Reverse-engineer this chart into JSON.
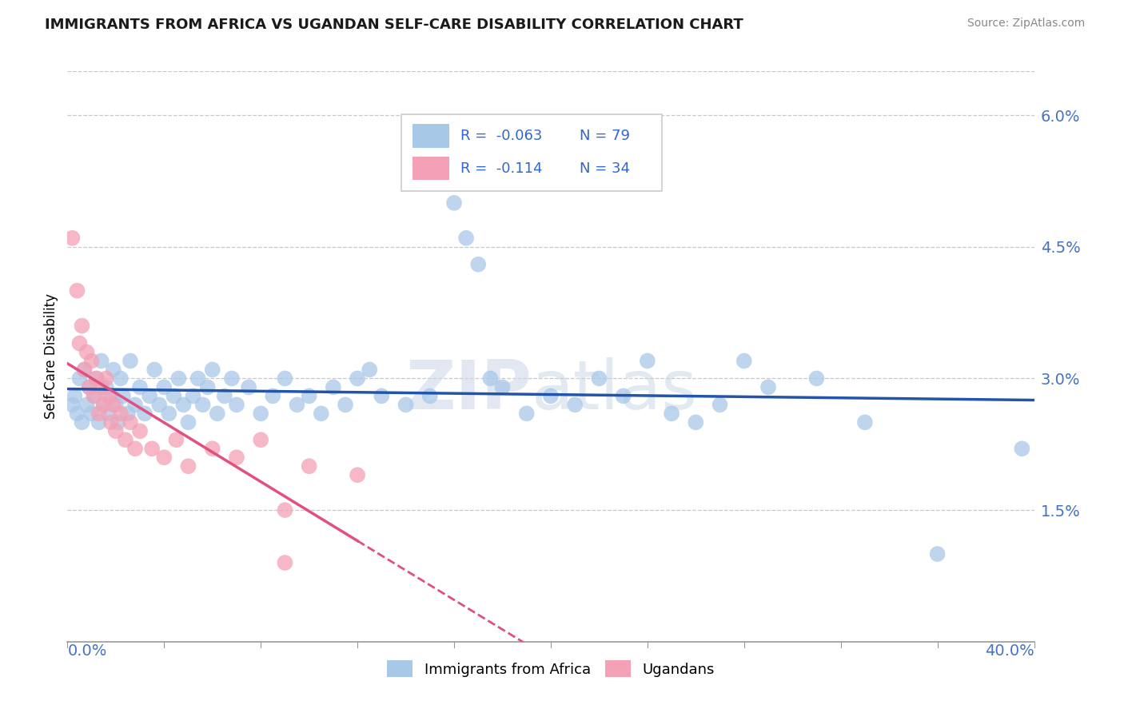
{
  "title": "IMMIGRANTS FROM AFRICA VS UGANDAN SELF-CARE DISABILITY CORRELATION CHART",
  "source": "Source: ZipAtlas.com",
  "ylabel": "Self-Care Disability",
  "right_yticks": [
    0.0,
    0.015,
    0.03,
    0.045,
    0.06
  ],
  "right_yticklabels": [
    "",
    "1.5%",
    "3.0%",
    "4.5%",
    "6.0%"
  ],
  "xmin": 0.0,
  "xmax": 0.4,
  "ymin": 0.0,
  "ymax": 0.065,
  "legend_r1": "R =  -0.063",
  "legend_n1": "N = 79",
  "legend_r2": "R =  -0.114",
  "legend_n2": "N = 34",
  "blue_color": "#a8c8e8",
  "pink_color": "#f4a0b5",
  "trend_blue": "#2255aa",
  "trend_pink": "#e05080",
  "blue_scatter": [
    [
      0.002,
      0.027
    ],
    [
      0.003,
      0.028
    ],
    [
      0.004,
      0.026
    ],
    [
      0.005,
      0.03
    ],
    [
      0.006,
      0.025
    ],
    [
      0.007,
      0.031
    ],
    [
      0.008,
      0.027
    ],
    [
      0.009,
      0.029
    ],
    [
      0.01,
      0.026
    ],
    [
      0.011,
      0.028
    ],
    [
      0.012,
      0.03
    ],
    [
      0.013,
      0.025
    ],
    [
      0.014,
      0.032
    ],
    [
      0.015,
      0.027
    ],
    [
      0.016,
      0.029
    ],
    [
      0.017,
      0.026
    ],
    [
      0.018,
      0.028
    ],
    [
      0.019,
      0.031
    ],
    [
      0.02,
      0.027
    ],
    [
      0.021,
      0.025
    ],
    [
      0.022,
      0.03
    ],
    [
      0.023,
      0.028
    ],
    [
      0.025,
      0.026
    ],
    [
      0.026,
      0.032
    ],
    [
      0.028,
      0.027
    ],
    [
      0.03,
      0.029
    ],
    [
      0.032,
      0.026
    ],
    [
      0.034,
      0.028
    ],
    [
      0.036,
      0.031
    ],
    [
      0.038,
      0.027
    ],
    [
      0.04,
      0.029
    ],
    [
      0.042,
      0.026
    ],
    [
      0.044,
      0.028
    ],
    [
      0.046,
      0.03
    ],
    [
      0.048,
      0.027
    ],
    [
      0.05,
      0.025
    ],
    [
      0.052,
      0.028
    ],
    [
      0.054,
      0.03
    ],
    [
      0.056,
      0.027
    ],
    [
      0.058,
      0.029
    ],
    [
      0.06,
      0.031
    ],
    [
      0.062,
      0.026
    ],
    [
      0.065,
      0.028
    ],
    [
      0.068,
      0.03
    ],
    [
      0.07,
      0.027
    ],
    [
      0.075,
      0.029
    ],
    [
      0.08,
      0.026
    ],
    [
      0.085,
      0.028
    ],
    [
      0.09,
      0.03
    ],
    [
      0.095,
      0.027
    ],
    [
      0.1,
      0.028
    ],
    [
      0.105,
      0.026
    ],
    [
      0.11,
      0.029
    ],
    [
      0.115,
      0.027
    ],
    [
      0.12,
      0.03
    ],
    [
      0.125,
      0.031
    ],
    [
      0.13,
      0.028
    ],
    [
      0.14,
      0.027
    ],
    [
      0.15,
      0.028
    ],
    [
      0.16,
      0.05
    ],
    [
      0.165,
      0.046
    ],
    [
      0.17,
      0.043
    ],
    [
      0.175,
      0.03
    ],
    [
      0.18,
      0.029
    ],
    [
      0.19,
      0.026
    ],
    [
      0.2,
      0.028
    ],
    [
      0.21,
      0.027
    ],
    [
      0.22,
      0.03
    ],
    [
      0.23,
      0.028
    ],
    [
      0.24,
      0.032
    ],
    [
      0.25,
      0.026
    ],
    [
      0.26,
      0.025
    ],
    [
      0.27,
      0.027
    ],
    [
      0.28,
      0.032
    ],
    [
      0.29,
      0.029
    ],
    [
      0.31,
      0.03
    ],
    [
      0.33,
      0.025
    ],
    [
      0.36,
      0.01
    ],
    [
      0.395,
      0.022
    ]
  ],
  "pink_scatter": [
    [
      0.002,
      0.046
    ],
    [
      0.004,
      0.04
    ],
    [
      0.005,
      0.034
    ],
    [
      0.006,
      0.036
    ],
    [
      0.007,
      0.031
    ],
    [
      0.008,
      0.033
    ],
    [
      0.009,
      0.029
    ],
    [
      0.01,
      0.032
    ],
    [
      0.011,
      0.028
    ],
    [
      0.012,
      0.03
    ],
    [
      0.013,
      0.026
    ],
    [
      0.014,
      0.029
    ],
    [
      0.015,
      0.027
    ],
    [
      0.016,
      0.03
    ],
    [
      0.017,
      0.028
    ],
    [
      0.018,
      0.025
    ],
    [
      0.019,
      0.027
    ],
    [
      0.02,
      0.024
    ],
    [
      0.022,
      0.026
    ],
    [
      0.024,
      0.023
    ],
    [
      0.026,
      0.025
    ],
    [
      0.028,
      0.022
    ],
    [
      0.03,
      0.024
    ],
    [
      0.035,
      0.022
    ],
    [
      0.04,
      0.021
    ],
    [
      0.045,
      0.023
    ],
    [
      0.05,
      0.02
    ],
    [
      0.06,
      0.022
    ],
    [
      0.07,
      0.021
    ],
    [
      0.08,
      0.023
    ],
    [
      0.09,
      0.009
    ],
    [
      0.1,
      0.02
    ],
    [
      0.12,
      0.019
    ],
    [
      0.09,
      0.015
    ]
  ],
  "watermark_zip": "ZIP",
  "watermark_atlas": "atlas",
  "background_color": "#ffffff",
  "grid_color": "#c8c8c8"
}
